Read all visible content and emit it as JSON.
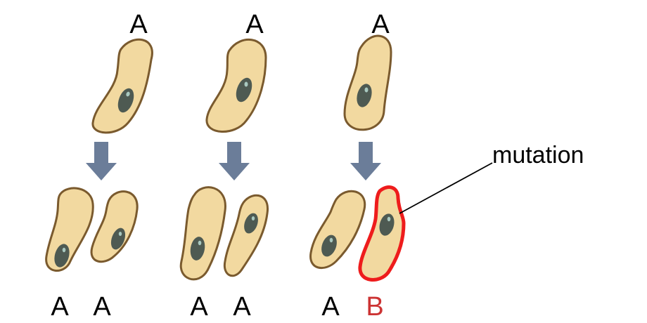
{
  "columns": [
    {
      "parent_label": "A",
      "daughter_labels": [
        "A",
        "A"
      ]
    },
    {
      "parent_label": "A",
      "daughter_labels": [
        "A",
        "A"
      ]
    },
    {
      "parent_label": "A",
      "daughter_labels": [
        "A",
        "B"
      ]
    }
  ],
  "annotation": {
    "text": "mutation"
  },
  "colors": {
    "cell_fill": "#F2D9A0",
    "cell_outline": "#7A5A2E",
    "nucleus": "#4E5A52",
    "nucleolus": "#A9C9C0",
    "arrow": "#6B7D99",
    "mutant_outline": "#EE1C1C",
    "mutant_label": "#CC3333",
    "text": "#000000"
  },
  "icons": [
    "down-arrow-icon",
    "nucleus-icon"
  ]
}
